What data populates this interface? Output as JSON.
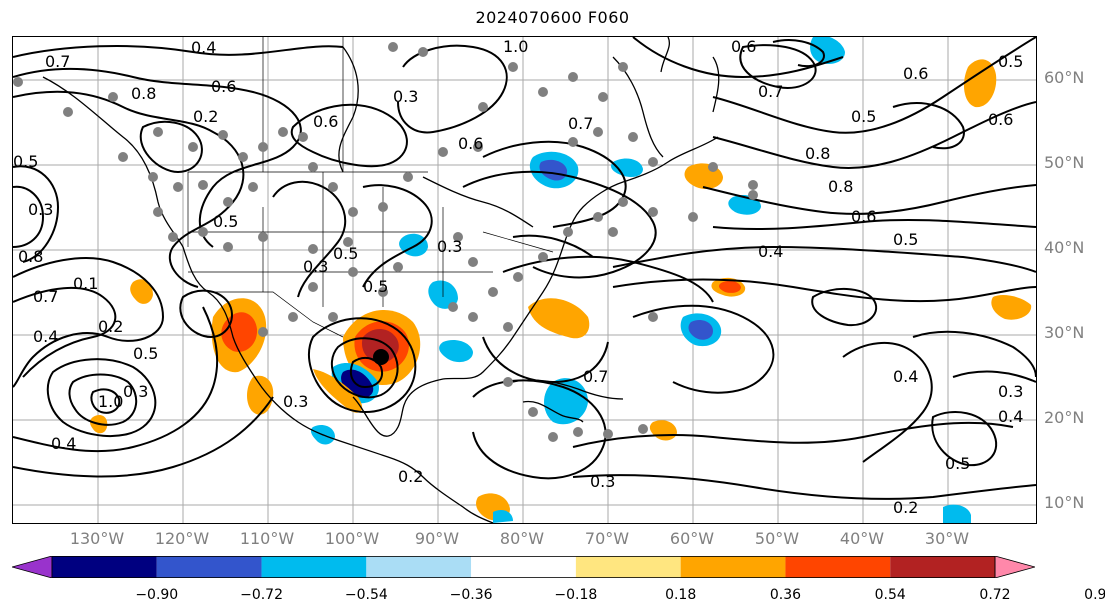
{
  "title": "2024070600 F060",
  "lat_labels": [
    "60°N",
    "50°N",
    "40°N",
    "30°N",
    "20°N",
    "10°N"
  ],
  "lon_labels": [
    "130°W",
    "120°W",
    "110°W",
    "100°W",
    "90°W",
    "80°W",
    "70°W",
    "60°W",
    "50°W",
    "40°W",
    "30°W"
  ],
  "contour_labels": [
    "0.4",
    "0.7",
    "0.6",
    "0.8",
    "0.2",
    "0.3",
    "0.5",
    "1.0",
    "0.5",
    "0.3",
    "0.8",
    "0.7",
    "0.4",
    "0.1",
    "0.2",
    "0.5",
    "0.6",
    "1.0",
    "0.3",
    "0.4",
    "0.3",
    "0.5",
    "0.3",
    "0.5",
    "0.3",
    "0.6",
    "0.7",
    "0.8",
    "0.6",
    "0.5",
    "0.4",
    "0.5",
    "0.6",
    "0.7",
    "0.8",
    "0.5",
    "0.6",
    "0.4",
    "0.5",
    "0.2",
    "0.3",
    "0.4",
    "0.6",
    "0.7",
    "0.2",
    "0.3"
  ],
  "colorbar": {
    "colors": [
      "#9933cc",
      "#000080",
      "#3355cc",
      "#00bbee",
      "#aaddf5",
      "#ffffff",
      "#ffe680",
      "#ffa500",
      "#ff4500",
      "#b22222",
      "#ff88aa"
    ],
    "tick_labels": [
      "−0.90",
      "−0.72",
      "−0.54",
      "−0.36",
      "−0.18",
      "0.18",
      "0.36",
      "0.54",
      "0.72",
      "0.90"
    ]
  },
  "fill_colors": {
    "grey_dots": "#808080",
    "grid": "#999999",
    "coast": "#000000",
    "contour": "#000000"
  }
}
